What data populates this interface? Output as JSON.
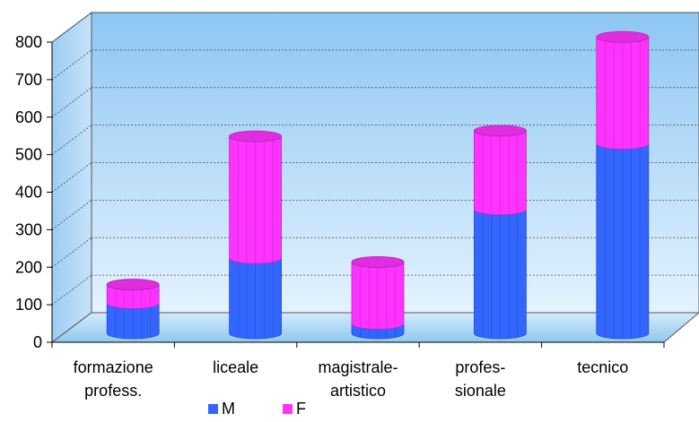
{
  "chart_data": {
    "type": "bar",
    "stacked": true,
    "three_d": true,
    "categories": [
      "formazione\nprofess.",
      "liceale",
      "magistrale-\nartistico",
      "profes-\nsionale",
      "tecnico"
    ],
    "series": [
      {
        "name": "M",
        "color": "#3366FF",
        "values": [
          80,
          200,
          25,
          330,
          505
        ]
      },
      {
        "name": "F",
        "color": "#FF33FF",
        "values": [
          50,
          325,
          165,
          210,
          285
        ]
      }
    ],
    "ylim": [
      0,
      800
    ],
    "yticks": [
      "0",
      "100",
      "200",
      "300",
      "400",
      "500",
      "600",
      "700",
      "800"
    ],
    "grid": true,
    "legend_position": "bottom",
    "title": "",
    "xlabel": "",
    "ylabel": ""
  }
}
